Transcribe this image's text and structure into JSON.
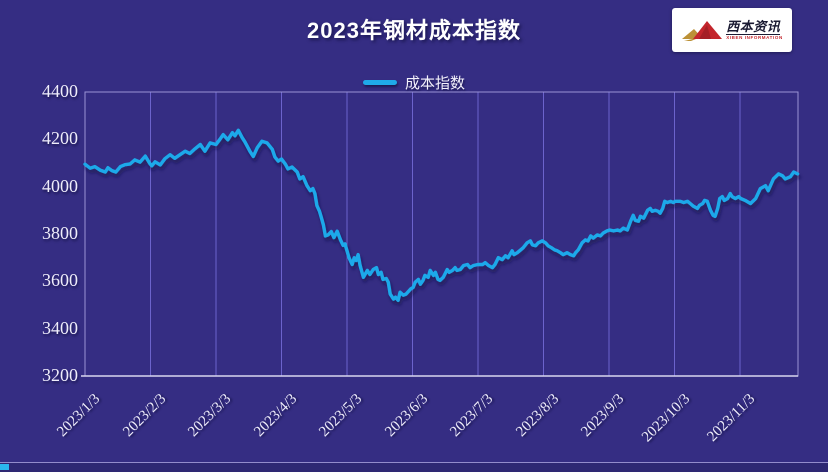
{
  "header": {
    "title": "2023年钢材成本指数"
  },
  "logo": {
    "brand": "西本资讯",
    "subtitle": "XIBEN INFORMATION"
  },
  "legend": {
    "label": "成本指数"
  },
  "colors": {
    "background": "#352D83",
    "line": "#1FA9EA",
    "gridline": "#6C63CC",
    "plot_border": "#9A93D6",
    "axis_line": "#D9D6EF",
    "tick_text": "#EFEDFB",
    "title_text": "#FFFFFF",
    "logo_red": "#C3252C",
    "logo_gold": "#BC9136",
    "logo_text": "#1B1B33"
  },
  "chart_data": {
    "type": "line",
    "title": "2023年钢材成本指数",
    "xlabel": "",
    "ylabel": "",
    "ylim": [
      3200,
      4400
    ],
    "yticks": [
      4400,
      4200,
      4000,
      3800,
      3600,
      3400,
      3200
    ],
    "categories": [
      "2023/1/3",
      "2023/2/3",
      "2023/3/3",
      "2023/4/3",
      "2023/5/3",
      "2023/6/3",
      "2023/7/3",
      "2023/8/3",
      "2023/9/3",
      "2023/10/3",
      "2023/11/3"
    ],
    "x_axis_note": "x = month position: 1 = 2023/1/3 tick, +1 per monthly tick; data continues past 11 (2023/11/3) to ~2023/12/1",
    "grid": "vertical gridlines only",
    "legend_position": "top center",
    "series": [
      {
        "name": "成本指数",
        "color": "#1FA9EA",
        "points": [
          [
            1.0,
            4095
          ],
          [
            1.08,
            4078
          ],
          [
            1.15,
            4085
          ],
          [
            1.23,
            4070
          ],
          [
            1.31,
            4062
          ],
          [
            1.35,
            4080
          ],
          [
            1.41,
            4068
          ],
          [
            1.47,
            4062
          ],
          [
            1.54,
            4085
          ],
          [
            1.61,
            4093
          ],
          [
            1.69,
            4096
          ],
          [
            1.76,
            4113
          ],
          [
            1.84,
            4104
          ],
          [
            1.92,
            4129
          ],
          [
            1.99,
            4098
          ],
          [
            2.02,
            4088
          ],
          [
            2.07,
            4105
          ],
          [
            2.15,
            4092
          ],
          [
            2.22,
            4118
          ],
          [
            2.3,
            4135
          ],
          [
            2.37,
            4120
          ],
          [
            2.45,
            4135
          ],
          [
            2.53,
            4150
          ],
          [
            2.6,
            4140
          ],
          [
            2.68,
            4160
          ],
          [
            2.76,
            4178
          ],
          [
            2.83,
            4150
          ],
          [
            2.91,
            4185
          ],
          [
            3.0,
            4178
          ],
          [
            3.06,
            4200
          ],
          [
            3.11,
            4220
          ],
          [
            3.18,
            4198
          ],
          [
            3.25,
            4228
          ],
          [
            3.29,
            4215
          ],
          [
            3.34,
            4238
          ],
          [
            3.4,
            4207
          ],
          [
            3.44,
            4190
          ],
          [
            3.52,
            4148
          ],
          [
            3.57,
            4128
          ],
          [
            3.63,
            4165
          ],
          [
            3.7,
            4192
          ],
          [
            3.78,
            4185
          ],
          [
            3.86,
            4158
          ],
          [
            3.9,
            4125
          ],
          [
            3.95,
            4108
          ],
          [
            4.0,
            4117
          ],
          [
            4.06,
            4095
          ],
          [
            4.1,
            4075
          ],
          [
            4.16,
            4083
          ],
          [
            4.24,
            4062
          ],
          [
            4.28,
            4033
          ],
          [
            4.33,
            4042
          ],
          [
            4.39,
            4004
          ],
          [
            4.44,
            3983
          ],
          [
            4.48,
            3992
          ],
          [
            4.51,
            3971
          ],
          [
            4.54,
            3920
          ],
          [
            4.58,
            3896
          ],
          [
            4.61,
            3867
          ],
          [
            4.64,
            3838
          ],
          [
            4.67,
            3792
          ],
          [
            4.71,
            3796
          ],
          [
            4.76,
            3810
          ],
          [
            4.8,
            3785
          ],
          [
            4.85,
            3812
          ],
          [
            4.9,
            3775
          ],
          [
            4.94,
            3752
          ],
          [
            4.97,
            3758
          ],
          [
            5.0,
            3729
          ],
          [
            5.03,
            3700
          ],
          [
            5.08,
            3671
          ],
          [
            5.11,
            3700
          ],
          [
            5.14,
            3688
          ],
          [
            5.17,
            3713
          ],
          [
            5.2,
            3667
          ],
          [
            5.25,
            3617
          ],
          [
            5.31,
            3646
          ],
          [
            5.35,
            3629
          ],
          [
            5.4,
            3650
          ],
          [
            5.45,
            3658
          ],
          [
            5.48,
            3629
          ],
          [
            5.52,
            3638
          ],
          [
            5.55,
            3608
          ],
          [
            5.6,
            3612
          ],
          [
            5.63,
            3596
          ],
          [
            5.66,
            3546
          ],
          [
            5.71,
            3525
          ],
          [
            5.74,
            3533
          ],
          [
            5.78,
            3520
          ],
          [
            5.81,
            3554
          ],
          [
            5.86,
            3542
          ],
          [
            5.9,
            3546
          ],
          [
            5.97,
            3567
          ],
          [
            6.01,
            3575
          ],
          [
            6.04,
            3596
          ],
          [
            6.09,
            3608
          ],
          [
            6.12,
            3588
          ],
          [
            6.16,
            3604
          ],
          [
            6.19,
            3625
          ],
          [
            6.24,
            3617
          ],
          [
            6.27,
            3646
          ],
          [
            6.32,
            3625
          ],
          [
            6.35,
            3638
          ],
          [
            6.39,
            3608
          ],
          [
            6.42,
            3604
          ],
          [
            6.47,
            3617
          ],
          [
            6.53,
            3650
          ],
          [
            6.56,
            3638
          ],
          [
            6.61,
            3646
          ],
          [
            6.65,
            3658
          ],
          [
            6.68,
            3646
          ],
          [
            6.73,
            3650
          ],
          [
            6.78,
            3667
          ],
          [
            6.84,
            3671
          ],
          [
            6.88,
            3658
          ],
          [
            6.93,
            3667
          ],
          [
            7.0,
            3671
          ],
          [
            7.07,
            3671
          ],
          [
            7.11,
            3679
          ],
          [
            7.16,
            3667
          ],
          [
            7.22,
            3658
          ],
          [
            7.26,
            3671
          ],
          [
            7.31,
            3700
          ],
          [
            7.37,
            3692
          ],
          [
            7.42,
            3708
          ],
          [
            7.46,
            3700
          ],
          [
            7.52,
            3729
          ],
          [
            7.55,
            3713
          ],
          [
            7.6,
            3721
          ],
          [
            7.65,
            3733
          ],
          [
            7.69,
            3742
          ],
          [
            7.75,
            3763
          ],
          [
            7.8,
            3771
          ],
          [
            7.83,
            3754
          ],
          [
            7.88,
            3750
          ],
          [
            7.92,
            3763
          ],
          [
            7.98,
            3771
          ],
          [
            8.03,
            3763
          ],
          [
            8.07,
            3750
          ],
          [
            8.12,
            3742
          ],
          [
            8.17,
            3733
          ],
          [
            8.21,
            3729
          ],
          [
            8.26,
            3721
          ],
          [
            8.3,
            3713
          ],
          [
            8.36,
            3721
          ],
          [
            8.41,
            3713
          ],
          [
            8.46,
            3708
          ],
          [
            8.49,
            3721
          ],
          [
            8.53,
            3733
          ],
          [
            8.59,
            3763
          ],
          [
            8.64,
            3775
          ],
          [
            8.68,
            3771
          ],
          [
            8.72,
            3792
          ],
          [
            8.76,
            3783
          ],
          [
            8.82,
            3796
          ],
          [
            8.87,
            3792
          ],
          [
            8.91,
            3804
          ],
          [
            8.97,
            3813
          ],
          [
            9.01,
            3817
          ],
          [
            9.07,
            3813
          ],
          [
            9.13,
            3817
          ],
          [
            9.17,
            3813
          ],
          [
            9.22,
            3825
          ],
          [
            9.28,
            3817
          ],
          [
            9.33,
            3854
          ],
          [
            9.37,
            3879
          ],
          [
            9.4,
            3858
          ],
          [
            9.45,
            3854
          ],
          [
            9.48,
            3875
          ],
          [
            9.53,
            3867
          ],
          [
            9.59,
            3900
          ],
          [
            9.63,
            3908
          ],
          [
            9.66,
            3896
          ],
          [
            9.71,
            3900
          ],
          [
            9.75,
            3896
          ],
          [
            9.78,
            3888
          ],
          [
            9.82,
            3908
          ],
          [
            9.85,
            3938
          ],
          [
            9.89,
            3933
          ],
          [
            9.94,
            3938
          ],
          [
            9.98,
            3933
          ],
          [
            10.01,
            3938
          ],
          [
            10.09,
            3938
          ],
          [
            10.14,
            3933
          ],
          [
            10.2,
            3938
          ],
          [
            10.24,
            3929
          ],
          [
            10.29,
            3917
          ],
          [
            10.35,
            3908
          ],
          [
            10.38,
            3921
          ],
          [
            10.43,
            3929
          ],
          [
            10.46,
            3942
          ],
          [
            10.5,
            3938
          ],
          [
            10.55,
            3900
          ],
          [
            10.59,
            3879
          ],
          [
            10.62,
            3875
          ],
          [
            10.66,
            3908
          ],
          [
            10.69,
            3950
          ],
          [
            10.73,
            3958
          ],
          [
            10.76,
            3942
          ],
          [
            10.81,
            3950
          ],
          [
            10.85,
            3971
          ],
          [
            10.88,
            3958
          ],
          [
            10.93,
            3950
          ],
          [
            10.98,
            3958
          ],
          [
            11.01,
            3950
          ],
          [
            11.08,
            3942
          ],
          [
            11.16,
            3929
          ],
          [
            11.24,
            3950
          ],
          [
            11.31,
            3992
          ],
          [
            11.39,
            4004
          ],
          [
            11.43,
            3983
          ],
          [
            11.51,
            4033
          ],
          [
            11.59,
            4054
          ],
          [
            11.65,
            4046
          ],
          [
            11.69,
            4033
          ],
          [
            11.77,
            4042
          ],
          [
            11.82,
            4062
          ],
          [
            11.88,
            4054
          ]
        ]
      }
    ]
  }
}
